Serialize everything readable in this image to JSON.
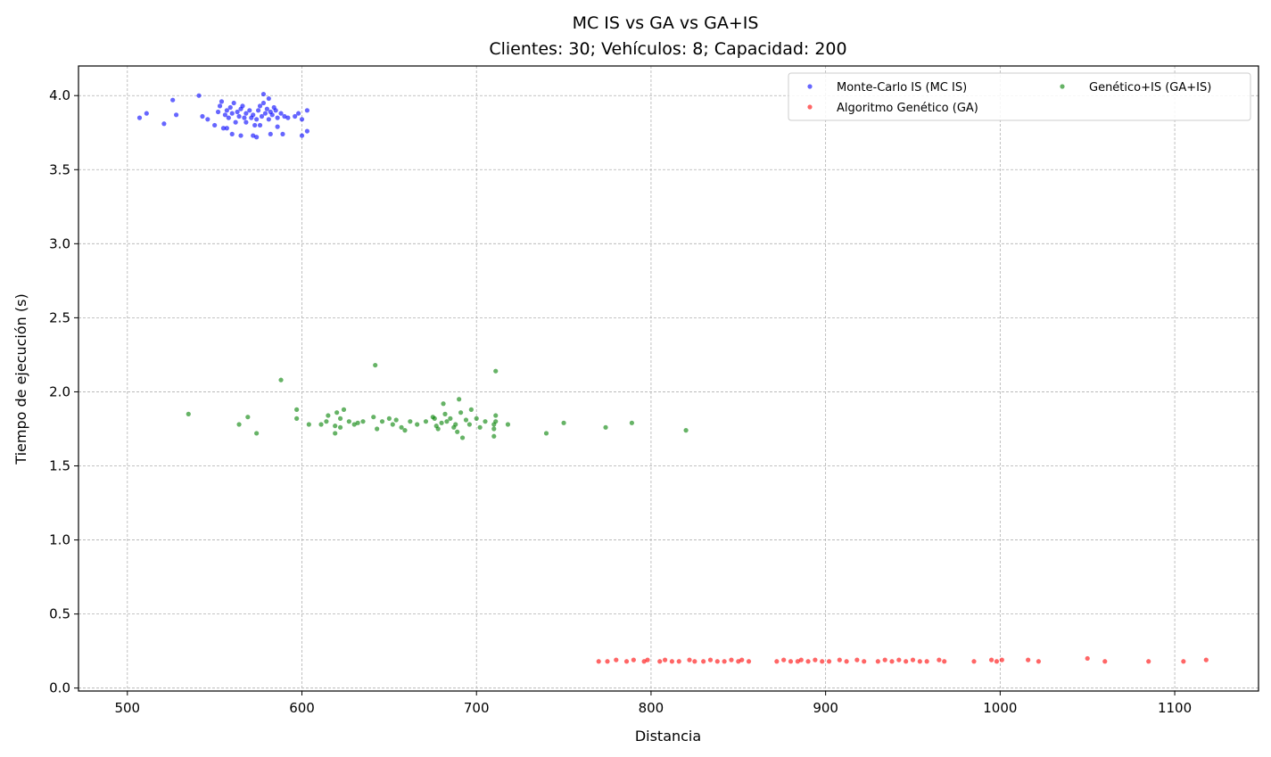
{
  "chart_data": {
    "type": "scatter",
    "title": "MC IS vs GA vs GA+IS",
    "subtitle": "Clientes: 30; Vehículos: 8; Capacidad: 200",
    "xlabel": "Distancia",
    "ylabel": "Tiempo de ejecución (s)",
    "xlim": [
      472,
      1148
    ],
    "ylim": [
      -0.02,
      4.2
    ],
    "xticks": [
      500,
      600,
      700,
      800,
      900,
      1000,
      1100
    ],
    "yticks": [
      0.0,
      0.5,
      1.0,
      1.5,
      2.0,
      2.5,
      3.0,
      3.5,
      4.0
    ],
    "grid": true,
    "legend_position": "top-right",
    "legend_columns": 2,
    "series": [
      {
        "name": "Monte-Carlo IS (MC IS)",
        "color": "#0000ff",
        "points": [
          [
            507,
            3.85
          ],
          [
            511,
            3.88
          ],
          [
            521,
            3.81
          ],
          [
            526,
            3.97
          ],
          [
            528,
            3.87
          ],
          [
            541,
            4.0
          ],
          [
            543,
            3.86
          ],
          [
            546,
            3.84
          ],
          [
            550,
            3.8
          ],
          [
            552,
            3.89
          ],
          [
            553,
            3.93
          ],
          [
            554,
            3.96
          ],
          [
            555,
            3.78
          ],
          [
            556,
            3.87
          ],
          [
            557,
            3.9
          ],
          [
            558,
            3.85
          ],
          [
            559,
            3.92
          ],
          [
            560,
            3.88
          ],
          [
            561,
            3.95
          ],
          [
            562,
            3.82
          ],
          [
            563,
            3.89
          ],
          [
            564,
            3.86
          ],
          [
            565,
            3.91
          ],
          [
            566,
            3.93
          ],
          [
            567,
            3.85
          ],
          [
            568,
            3.88
          ],
          [
            570,
            3.9
          ],
          [
            572,
            3.87
          ],
          [
            574,
            3.84
          ],
          [
            575,
            3.9
          ],
          [
            576,
            3.93
          ],
          [
            577,
            3.86
          ],
          [
            578,
            3.95
          ],
          [
            579,
            3.88
          ],
          [
            580,
            3.91
          ],
          [
            581,
            3.84
          ],
          [
            582,
            3.89
          ],
          [
            583,
            3.87
          ],
          [
            584,
            3.92
          ],
          [
            585,
            3.9
          ],
          [
            586,
            3.85
          ],
          [
            588,
            3.88
          ],
          [
            590,
            3.86
          ],
          [
            592,
            3.85
          ],
          [
            596,
            3.86
          ],
          [
            598,
            3.88
          ],
          [
            600,
            3.84
          ],
          [
            603,
            3.9
          ],
          [
            557,
            3.78
          ],
          [
            560,
            3.74
          ],
          [
            565,
            3.73
          ],
          [
            572,
            3.73
          ],
          [
            574,
            3.72
          ],
          [
            578,
            4.01
          ],
          [
            581,
            3.98
          ],
          [
            582,
            3.74
          ],
          [
            586,
            3.79
          ],
          [
            589,
            3.74
          ],
          [
            600,
            3.73
          ],
          [
            603,
            3.76
          ],
          [
            573,
            3.8
          ],
          [
            568,
            3.82
          ],
          [
            571,
            3.85
          ],
          [
            576,
            3.8
          ]
        ]
      },
      {
        "name": "Algoritmo Genético (GA)",
        "color": "#ff0000",
        "points": [
          [
            770,
            0.18
          ],
          [
            775,
            0.18
          ],
          [
            780,
            0.19
          ],
          [
            786,
            0.18
          ],
          [
            790,
            0.19
          ],
          [
            796,
            0.18
          ],
          [
            798,
            0.19
          ],
          [
            805,
            0.18
          ],
          [
            808,
            0.19
          ],
          [
            812,
            0.18
          ],
          [
            816,
            0.18
          ],
          [
            822,
            0.19
          ],
          [
            825,
            0.18
          ],
          [
            830,
            0.18
          ],
          [
            834,
            0.19
          ],
          [
            838,
            0.18
          ],
          [
            842,
            0.18
          ],
          [
            846,
            0.19
          ],
          [
            850,
            0.18
          ],
          [
            852,
            0.19
          ],
          [
            856,
            0.18
          ],
          [
            872,
            0.18
          ],
          [
            876,
            0.19
          ],
          [
            880,
            0.18
          ],
          [
            884,
            0.18
          ],
          [
            886,
            0.19
          ],
          [
            890,
            0.18
          ],
          [
            894,
            0.19
          ],
          [
            898,
            0.18
          ],
          [
            902,
            0.18
          ],
          [
            908,
            0.19
          ],
          [
            912,
            0.18
          ],
          [
            918,
            0.19
          ],
          [
            922,
            0.18
          ],
          [
            930,
            0.18
          ],
          [
            934,
            0.19
          ],
          [
            938,
            0.18
          ],
          [
            942,
            0.19
          ],
          [
            946,
            0.18
          ],
          [
            950,
            0.19
          ],
          [
            954,
            0.18
          ],
          [
            958,
            0.18
          ],
          [
            965,
            0.19
          ],
          [
            968,
            0.18
          ],
          [
            985,
            0.18
          ],
          [
            995,
            0.19
          ],
          [
            998,
            0.18
          ],
          [
            1001,
            0.19
          ],
          [
            1016,
            0.19
          ],
          [
            1022,
            0.18
          ],
          [
            1050,
            0.2
          ],
          [
            1060,
            0.18
          ],
          [
            1085,
            0.18
          ],
          [
            1105,
            0.18
          ],
          [
            1118,
            0.19
          ]
        ]
      },
      {
        "name": "Genético+IS (GA+IS)",
        "color": "#008000",
        "points": [
          [
            535,
            1.85
          ],
          [
            564,
            1.78
          ],
          [
            569,
            1.83
          ],
          [
            574,
            1.72
          ],
          [
            588,
            2.08
          ],
          [
            597,
            1.88
          ],
          [
            597,
            1.82
          ],
          [
            604,
            1.78
          ],
          [
            611,
            1.78
          ],
          [
            614,
            1.8
          ],
          [
            615,
            1.84
          ],
          [
            619,
            1.72
          ],
          [
            619,
            1.77
          ],
          [
            620,
            1.86
          ],
          [
            622,
            1.82
          ],
          [
            622,
            1.76
          ],
          [
            624,
            1.88
          ],
          [
            627,
            1.8
          ],
          [
            630,
            1.78
          ],
          [
            632,
            1.79
          ],
          [
            635,
            1.8
          ],
          [
            641,
            1.83
          ],
          [
            642,
            2.18
          ],
          [
            643,
            1.75
          ],
          [
            646,
            1.8
          ],
          [
            650,
            1.82
          ],
          [
            652,
            1.78
          ],
          [
            654,
            1.81
          ],
          [
            657,
            1.76
          ],
          [
            659,
            1.74
          ],
          [
            662,
            1.8
          ],
          [
            666,
            1.78
          ],
          [
            671,
            1.8
          ],
          [
            675,
            1.83
          ],
          [
            677,
            1.77
          ],
          [
            678,
            1.75
          ],
          [
            680,
            1.79
          ],
          [
            681,
            1.92
          ],
          [
            682,
            1.85
          ],
          [
            683,
            1.8
          ],
          [
            685,
            1.82
          ],
          [
            688,
            1.78
          ],
          [
            689,
            1.73
          ],
          [
            690,
            1.95
          ],
          [
            691,
            1.86
          ],
          [
            692,
            1.69
          ],
          [
            694,
            1.81
          ],
          [
            696,
            1.78
          ],
          [
            697,
            1.88
          ],
          [
            700,
            1.82
          ],
          [
            702,
            1.76
          ],
          [
            710,
            1.7
          ],
          [
            710,
            1.75
          ],
          [
            711,
            1.8
          ],
          [
            711,
            2.14
          ],
          [
            711,
            1.84
          ],
          [
            718,
            1.78
          ],
          [
            740,
            1.72
          ],
          [
            750,
            1.79
          ],
          [
            774,
            1.76
          ],
          [
            789,
            1.79
          ],
          [
            820,
            1.74
          ],
          [
            676,
            1.82
          ],
          [
            687,
            1.76
          ],
          [
            705,
            1.8
          ],
          [
            710,
            1.78
          ]
        ]
      }
    ]
  }
}
